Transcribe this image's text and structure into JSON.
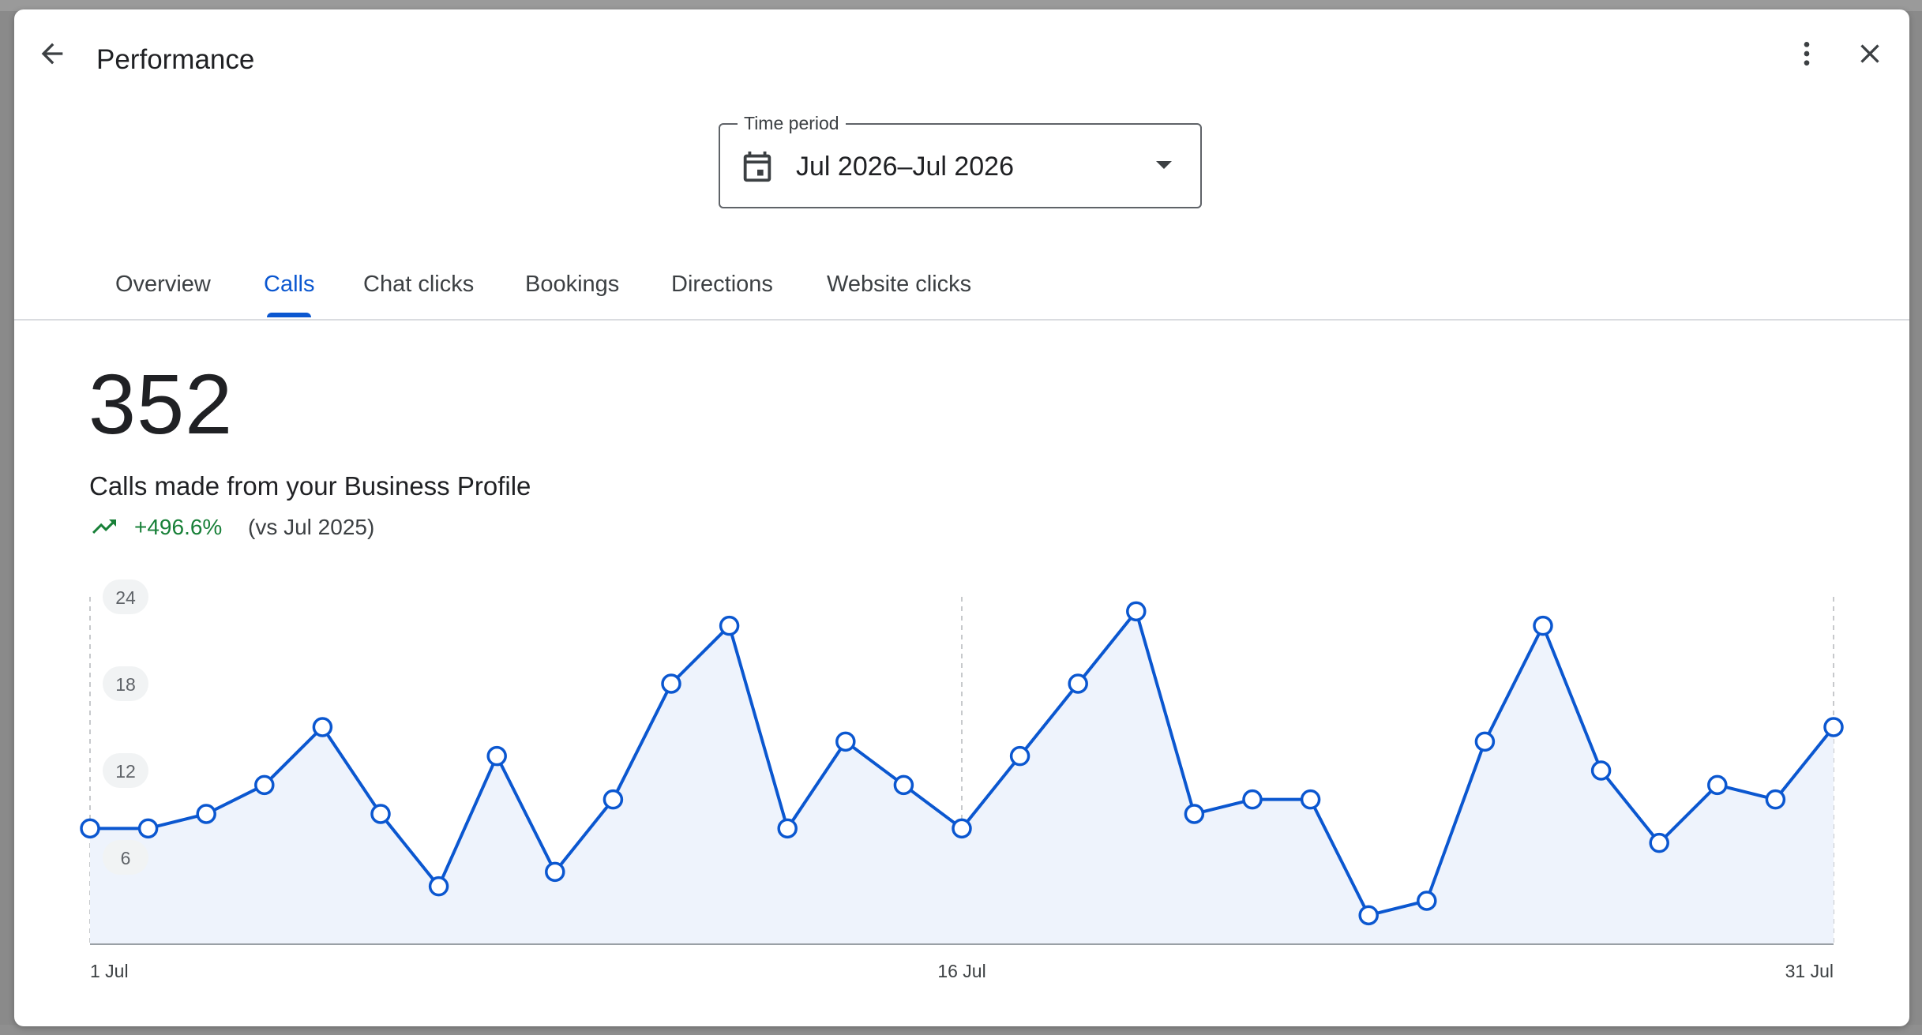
{
  "dialog": {
    "title": "Performance",
    "icons": {
      "back": "arrow-back-icon",
      "more": "more-vert-icon",
      "close": "close-icon"
    }
  },
  "time_period": {
    "label": "Time period",
    "value": "Jul 2026–Jul 2026",
    "icons": {
      "calendar": "calendar-icon",
      "dropdown": "arrow-drop-down-icon"
    }
  },
  "tabs": [
    {
      "label": "Overview",
      "active": false
    },
    {
      "label": "Calls",
      "active": true
    },
    {
      "label": "Chat clicks",
      "active": false
    },
    {
      "label": "Bookings",
      "active": false
    },
    {
      "label": "Directions",
      "active": false
    },
    {
      "label": "Website clicks",
      "active": false
    }
  ],
  "metric": {
    "value": "352",
    "description": "Calls made from your Business Profile",
    "change": "+496.6%",
    "comparison": "(vs Jul 2025)",
    "trend_icon": "trending-up-icon"
  },
  "colors": {
    "accent": "#0b57d0",
    "positive": "#188038",
    "fill": "#eef3fc",
    "grid": "#c7c9cc"
  },
  "chart_data": {
    "type": "area",
    "x": [
      1,
      2,
      3,
      4,
      5,
      6,
      7,
      8,
      9,
      10,
      11,
      12,
      13,
      14,
      15,
      16,
      17,
      18,
      19,
      20,
      21,
      22,
      23,
      24,
      25,
      26,
      27,
      28,
      29,
      30,
      31
    ],
    "x_tick_labels": [
      {
        "x": 1,
        "label": "1 Jul"
      },
      {
        "x": 16,
        "label": "16 Jul"
      },
      {
        "x": 31,
        "label": "31 Jul"
      }
    ],
    "y_ticks": [
      6,
      12,
      18,
      24
    ],
    "ylim": [
      0,
      24
    ],
    "series": [
      {
        "values": [
          8,
          8,
          9,
          11,
          15,
          9,
          4,
          13,
          5,
          10,
          18,
          22,
          8,
          14,
          11,
          8,
          13,
          18,
          23,
          9,
          10,
          10,
          2,
          3,
          14,
          22,
          12,
          7,
          11,
          10,
          15
        ]
      }
    ],
    "grid": "vertical dashed at 1, 16, 31 Jul",
    "legend": "none"
  }
}
